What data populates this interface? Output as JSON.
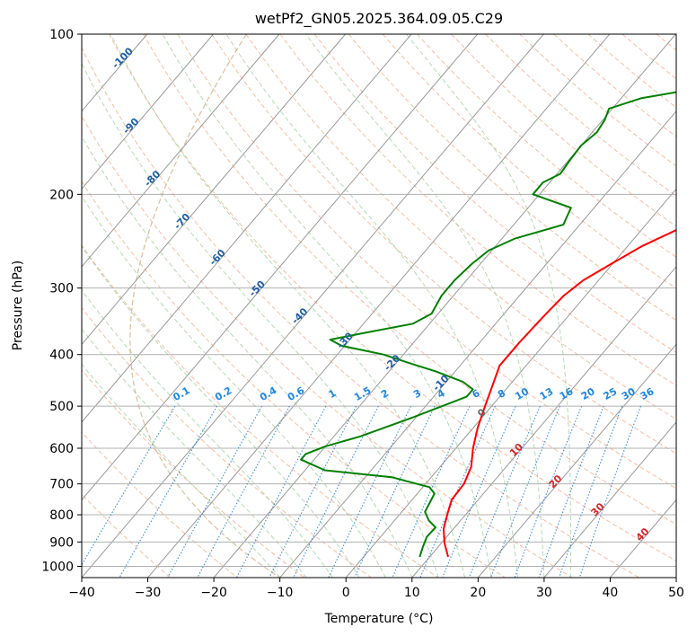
{
  "chart_data": {
    "type": "line",
    "subtype": "skew-t log-p sounding",
    "title": "wetPf2_GN05.2025.364.09.05.C29",
    "xlabel": "Temperature (°C)",
    "ylabel": "Pressure (hPa)",
    "xlim": [
      -40,
      50
    ],
    "ylim": [
      1050,
      100
    ],
    "y_scale": "log",
    "x_ticks": [
      -40,
      -30,
      -20,
      -10,
      0,
      10,
      20,
      30,
      40,
      50
    ],
    "y_ticks": [
      100,
      200,
      300,
      400,
      500,
      600,
      700,
      800,
      900,
      1000
    ],
    "grid": true,
    "series": [
      {
        "color": "#ff0000",
        "points": [
          [
            12.8,
            960
          ],
          [
            10.5,
            905
          ],
          [
            8.5,
            850
          ],
          [
            7.0,
            790
          ],
          [
            6.0,
            750
          ],
          [
            5.8,
            700
          ],
          [
            4.7,
            650
          ],
          [
            2.6,
            600
          ],
          [
            0.7,
            550
          ],
          [
            -1.0,
            500
          ],
          [
            -2.8,
            450
          ],
          [
            -4.0,
            420
          ],
          [
            -4.0,
            380
          ],
          [
            -3.7,
            340
          ],
          [
            -3.3,
            310
          ],
          [
            -2.3,
            290
          ],
          [
            -0.2,
            270
          ],
          [
            2.2,
            250
          ],
          [
            5.0,
            235
          ],
          [
            8.0,
            220
          ],
          [
            10.3,
            205
          ],
          [
            12.6,
            190
          ],
          [
            15.3,
            175
          ],
          [
            18.5,
            160
          ],
          [
            21.8,
            145
          ],
          [
            24.0,
            133
          ],
          [
            24.5,
            122
          ],
          [
            23.5,
            113
          ],
          [
            23.0,
            105
          ],
          [
            23.0,
            100
          ]
        ]
      },
      {
        "color": "#008000",
        "points": [
          [
            8.5,
            960
          ],
          [
            7.7,
            920
          ],
          [
            7.0,
            880
          ],
          [
            7.1,
            845
          ],
          [
            5.2,
            820
          ],
          [
            3.5,
            790
          ],
          [
            2.6,
            730
          ],
          [
            1.0,
            710
          ],
          [
            -6.0,
            680
          ],
          [
            -17.0,
            660
          ],
          [
            -22.0,
            630
          ],
          [
            -22.0,
            615
          ],
          [
            -20.0,
            595
          ],
          [
            -16.0,
            570
          ],
          [
            -10.5,
            525
          ],
          [
            -5.0,
            480
          ],
          [
            -5.0,
            465
          ],
          [
            -7.5,
            450
          ],
          [
            -13.0,
            430
          ],
          [
            -18.0,
            415
          ],
          [
            -23.0,
            400
          ],
          [
            -30.5,
            385
          ],
          [
            -33.0,
            375
          ],
          [
            -29.0,
            365
          ],
          [
            -22.5,
            350
          ],
          [
            -21.0,
            335
          ],
          [
            -21.8,
            310
          ],
          [
            -21.8,
            290
          ],
          [
            -21.3,
            270
          ],
          [
            -20.5,
            255
          ],
          [
            -18.0,
            242
          ],
          [
            -12.5,
            228
          ],
          [
            -13.5,
            212
          ],
          [
            -21.0,
            200
          ],
          [
            -21.0,
            190
          ],
          [
            -19.5,
            183
          ],
          [
            -19.8,
            172
          ],
          [
            -20.0,
            162
          ],
          [
            -19.3,
            153
          ],
          [
            -19.7,
            145
          ],
          [
            -20.5,
            138
          ],
          [
            -17.0,
            132
          ],
          [
            -9.0,
            126
          ],
          [
            -4.0,
            120
          ],
          [
            -1.0,
            112
          ],
          [
            2.0,
            103
          ],
          [
            2.3,
            100
          ]
        ]
      }
    ],
    "isotherm_labels": [
      "-100",
      "-90",
      "-80",
      "-70",
      "-60",
      "-50",
      "-40",
      "-30",
      "-20",
      "-10",
      "0",
      "10",
      "20",
      "30",
      "40"
    ],
    "mixing_ratio_labels": [
      "0.1",
      "0.2",
      "0.4",
      "0.6",
      "1",
      "1.5",
      "2",
      "3",
      "4",
      "6",
      "8",
      "10",
      "13",
      "16",
      "20",
      "25",
      "30",
      "36"
    ],
    "reference_lines": [
      {
        "name": "isotherms",
        "color": "#888888",
        "style": "solid"
      },
      {
        "name": "dry-adiabats",
        "color": "#f4a582",
        "style": "dashed"
      },
      {
        "name": "moist-adiabats",
        "color": "#9fd19f",
        "style": "dashed"
      },
      {
        "name": "mixing-ratio-lines",
        "color": "#1f7bd9",
        "style": "dotted"
      },
      {
        "name": "lcl-curve",
        "color": "#d2b48c",
        "style": "dashed"
      }
    ]
  }
}
